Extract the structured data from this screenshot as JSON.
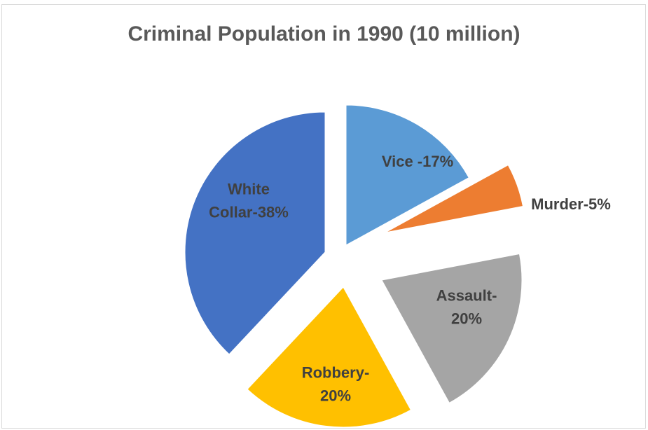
{
  "chart_data": {
    "type": "pie",
    "title": "Criminal Population in 1990 (10 million)",
    "exploded": true,
    "slices": [
      {
        "category": "Vice",
        "value": 17,
        "label_lines": [
          "Vice -17%"
        ],
        "color": "#5B9BD5"
      },
      {
        "category": "Murder",
        "value": 5,
        "label_lines": [
          "Murder-5%"
        ],
        "color": "#ED7D31"
      },
      {
        "category": "Assault",
        "value": 20,
        "label_lines": [
          "Assault-",
          "20%"
        ],
        "color": "#A5A5A5"
      },
      {
        "category": "Robbery",
        "value": 20,
        "label_lines": [
          "Robbery-",
          "20%"
        ],
        "color": "#FFC000"
      },
      {
        "category": "White Collar",
        "value": 38,
        "label_lines": [
          "White",
          "Collar-38%"
        ],
        "color": "#4472C4"
      }
    ],
    "legend": "none"
  }
}
